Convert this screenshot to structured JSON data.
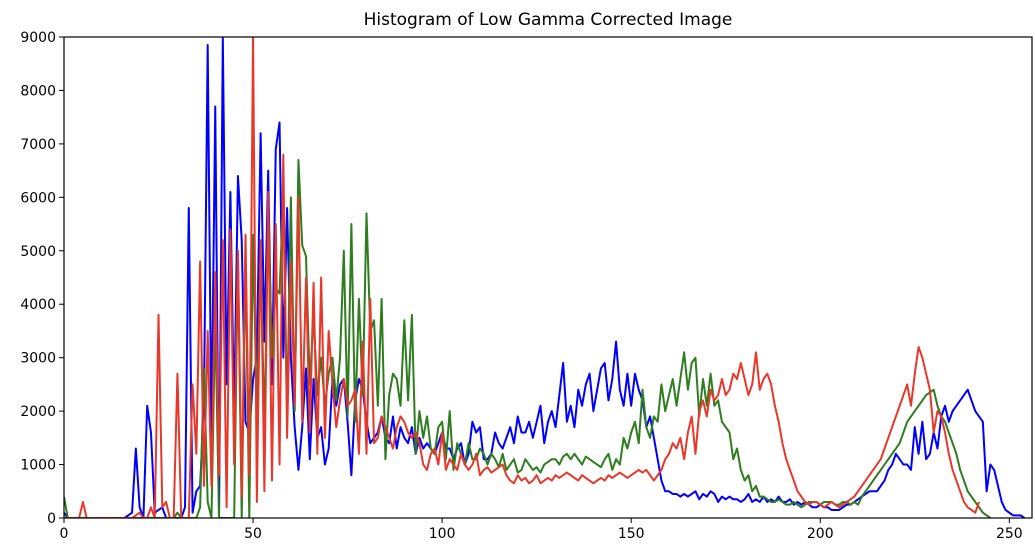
{
  "chart_data": {
    "type": "line",
    "title": "Histogram of Low Gamma Corrected Image",
    "xlabel": "",
    "ylabel": "",
    "xlim": [
      0,
      256
    ],
    "ylim": [
      0,
      9000
    ],
    "xticks": [
      0,
      50,
      100,
      150,
      200,
      250
    ],
    "yticks": [
      0,
      1000,
      2000,
      3000,
      4000,
      5000,
      6000,
      7000,
      8000,
      9000
    ],
    "grid": false,
    "legend": "none",
    "colors": {
      "b": "#0000ff",
      "g": "#2e7d1f",
      "r": "#e8382a"
    },
    "series": [
      {
        "channel": "b",
        "values": [
          100,
          0,
          0,
          0,
          0,
          0,
          0,
          0,
          0,
          0,
          0,
          0,
          0,
          0,
          0,
          0,
          0,
          50,
          100,
          1300,
          200,
          0,
          2100,
          1600,
          100,
          150,
          200,
          0,
          0,
          0,
          0,
          0,
          200,
          5800,
          100,
          500,
          600,
          2100,
          8850,
          1500,
          7700,
          0,
          9000,
          2500,
          6100,
          1900,
          6400,
          5200,
          1800,
          1600,
          2600,
          3000,
          7200,
          3300,
          6500,
          2500,
          6900,
          7400,
          3000,
          5800,
          3000,
          1700,
          900,
          1700,
          2800,
          1100,
          2600,
          1500,
          1700,
          1000,
          1300,
          2600,
          2100,
          2500,
          2600,
          1800,
          800,
          2200,
          2600,
          2400,
          1800,
          1400,
          1500,
          1600,
          1900,
          1500,
          1400,
          1900,
          1300,
          1700,
          1500,
          1400,
          1700,
          1200,
          1500,
          1300,
          1400,
          1300,
          1200,
          1400,
          1600,
          1300,
          1300,
          1100,
          1300,
          1400,
          1000,
          1200,
          1800,
          1600,
          1700,
          1100,
          1100,
          1200,
          1600,
          1400,
          1300,
          1500,
          1700,
          1400,
          1900,
          1600,
          1600,
          1800,
          1500,
          1800,
          2100,
          1400,
          1800,
          2000,
          1700,
          2300,
          2900,
          1800,
          2100,
          1700,
          2400,
          2100,
          2500,
          2700,
          2000,
          2400,
          2800,
          2900,
          2200,
          2600,
          3300,
          2400,
          2100,
          2700,
          2100,
          2700,
          2400,
          2200,
          1700,
          1900,
          1500,
          1100,
          700,
          500,
          500,
          450,
          450,
          400,
          450,
          400,
          450,
          500,
          350,
          450,
          400,
          500,
          450,
          300,
          400,
          350,
          400,
          350,
          350,
          300,
          350,
          450,
          300,
          350,
          300,
          400,
          300,
          350,
          300,
          400,
          300,
          300,
          350,
          250,
          300,
          250,
          300,
          250,
          200,
          200,
          250,
          200,
          200,
          150,
          150,
          150,
          200,
          250,
          250,
          300,
          350,
          400,
          450,
          500,
          500,
          500,
          600,
          700,
          900,
          1000,
          1200,
          1100,
          1000,
          1000,
          900,
          1700,
          1200,
          1800,
          1100,
          1200,
          1600,
          1300,
          1900,
          2100,
          1800,
          2000,
          2100,
          2200,
          2300,
          2400,
          2200,
          2000,
          1900,
          1800,
          500,
          1000,
          900,
          600,
          300,
          150,
          100,
          50,
          50,
          50,
          0
        ]
      },
      {
        "channel": "g",
        "values": [
          400,
          0,
          0,
          0,
          0,
          0,
          0,
          0,
          0,
          0,
          0,
          0,
          0,
          0,
          0,
          0,
          0,
          0,
          0,
          0,
          0,
          0,
          0,
          0,
          0,
          0,
          0,
          0,
          0,
          0,
          100,
          0,
          0,
          0,
          0,
          0,
          200,
          2800,
          300,
          0,
          3800,
          0,
          0,
          0,
          0,
          0,
          4900,
          0,
          5000,
          0,
          5300,
          1900,
          5000,
          1600,
          5800,
          3000,
          4300,
          4200,
          6100,
          1900,
          6000,
          2000,
          6700,
          5100,
          4900,
          2500,
          3800,
          2300,
          3000,
          2100,
          2700,
          3000,
          2200,
          3000,
          5000,
          1900,
          5500,
          1800,
          4100,
          2300,
          5700,
          3500,
          3700,
          2100,
          4100,
          1100,
          2300,
          2700,
          2600,
          2100,
          3700,
          2200,
          3800,
          1200,
          2000,
          1500,
          1900,
          1300,
          1200,
          1700,
          1800,
          1100,
          2000,
          900,
          1400,
          1200,
          1000,
          1400,
          1100,
          1100,
          1300,
          1200,
          1000,
          1200,
          1100,
          950,
          1200,
          900,
          1000,
          1100,
          850,
          900,
          1100,
          1000,
          900,
          950,
          850,
          1000,
          1050,
          1100,
          1100,
          1000,
          1150,
          1200,
          1100,
          1200,
          1100,
          1000,
          1150,
          1100,
          1050,
          1000,
          950,
          1100,
          1200,
          900,
          1100,
          1000,
          1500,
          1300,
          1600,
          1800,
          1400,
          2400,
          1700,
          1500,
          1900,
          1800,
          2500,
          2000,
          2300,
          2600,
          2100,
          2600,
          3100,
          2400,
          2900,
          3000,
          1900,
          2600,
          2100,
          2700,
          2100,
          2200,
          1800,
          1700,
          1600,
          1100,
          1300,
          900,
          700,
          800,
          500,
          600,
          400,
          400,
          350,
          300,
          300,
          350,
          300,
          250,
          250,
          300,
          250,
          200,
          250,
          300,
          300,
          300,
          250,
          300,
          300,
          300,
          250,
          250,
          300,
          300,
          250,
          300,
          250,
          400,
          500,
          600,
          700,
          800,
          900,
          1000,
          1100,
          1200,
          1300,
          1400,
          1600,
          1800,
          1900,
          2000,
          2100,
          2200,
          2300,
          2350,
          2400,
          2100,
          1900,
          1800,
          1600,
          1400,
          1200,
          900,
          700,
          500,
          400,
          300,
          200,
          100,
          50,
          0
        ]
      },
      {
        "channel": "r",
        "values": [
          0,
          0,
          0,
          0,
          0,
          300,
          0,
          0,
          0,
          0,
          0,
          0,
          0,
          0,
          0,
          0,
          0,
          0,
          0,
          50,
          100,
          0,
          0,
          200,
          0,
          3800,
          200,
          300,
          0,
          0,
          2700,
          0,
          0,
          0,
          2500,
          1200,
          4800,
          600,
          3500,
          600,
          4600,
          800,
          5200,
          200,
          5400,
          1000,
          5000,
          400,
          5300,
          800,
          9000,
          300,
          5200,
          500,
          6100,
          700,
          5500,
          1000,
          6800,
          1500,
          4800,
          2100,
          6000,
          1800,
          4500,
          1600,
          4400,
          1200,
          4500,
          1500,
          3500,
          2500,
          1700,
          2200,
          2600,
          2100,
          2200,
          2400,
          1200,
          3300,
          1200,
          4100,
          1400,
          1500,
          1900,
          1700,
          1500,
          1300,
          1700,
          1900,
          1800,
          1600,
          1500,
          1600,
          1400,
          1000,
          900,
          1200,
          1300,
          1000,
          1600,
          900,
          1100,
          1000,
          900,
          1200,
          1000,
          900,
          1000,
          1200,
          800,
          900,
          950,
          850,
          900,
          950,
          1000,
          800,
          700,
          650,
          800,
          700,
          750,
          650,
          700,
          800,
          650,
          700,
          750,
          700,
          800,
          750,
          800,
          850,
          800,
          750,
          700,
          800,
          750,
          700,
          650,
          700,
          750,
          700,
          800,
          750,
          800,
          850,
          800,
          750,
          800,
          850,
          900,
          850,
          900,
          800,
          700,
          800,
          900,
          1100,
          1200,
          1400,
          1300,
          1500,
          1100,
          1600,
          1900,
          1200,
          2000,
          2200,
          1900,
          2400,
          2200,
          2300,
          2600,
          2300,
          2400,
          2700,
          2600,
          2900,
          2600,
          2300,
          2500,
          3100,
          2400,
          2600,
          2700,
          2500,
          2100,
          1800,
          1400,
          1100,
          900,
          700,
          500,
          400,
          300,
          250,
          300,
          300,
          250,
          200,
          250,
          300,
          250,
          200,
          250,
          300,
          350,
          400,
          500,
          600,
          700,
          800,
          900,
          1000,
          1100,
          1300,
          1500,
          1700,
          1900,
          2100,
          2300,
          2500,
          2100,
          2700,
          3200,
          3000,
          2700,
          2400,
          1600,
          2000,
          1900,
          1600,
          1200,
          900,
          700,
          500,
          300,
          200,
          150,
          100,
          300
        ]
      }
    ]
  }
}
